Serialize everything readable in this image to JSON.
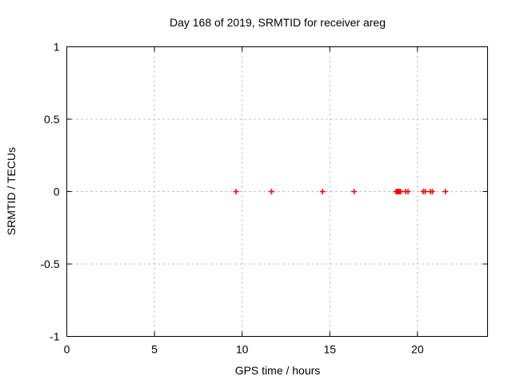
{
  "chart_data": {
    "type": "scatter",
    "title": "Day 168 of 2019, SRMTID for receiver areg",
    "xlabel": "GPS time / hours",
    "ylabel": "SRMTID / TECUs",
    "xlim": [
      0,
      24
    ],
    "ylim": [
      -1,
      1
    ],
    "xticks": [
      0,
      5,
      10,
      15,
      20
    ],
    "yticks": [
      -1,
      -0.5,
      0,
      0.5,
      1
    ],
    "ytick_labels": [
      "-1",
      "-0.5",
      "0",
      "0.5",
      "1"
    ],
    "xtick_labels": [
      "0",
      "5",
      "10",
      "15",
      "20"
    ],
    "grid": "dashed",
    "legend_position": "none",
    "series": [
      {
        "name": "SRMTID",
        "marker": "plus",
        "color": "#ff0000",
        "x": [
          9.65,
          11.68,
          14.59,
          16.39,
          18.78,
          18.83,
          18.88,
          18.93,
          18.99,
          19.04,
          19.32,
          19.46,
          20.33,
          20.44,
          20.73,
          20.85,
          21.6
        ],
        "y": [
          0,
          0,
          0,
          0,
          0,
          0,
          0,
          0,
          0,
          0,
          0,
          0,
          0,
          0,
          0,
          0,
          0
        ]
      }
    ],
    "colors": {
      "background": "#ffffff",
      "frame": "#000000",
      "grid": "#a8a8a8",
      "text": "#000000",
      "marker": "#ff0000"
    }
  }
}
